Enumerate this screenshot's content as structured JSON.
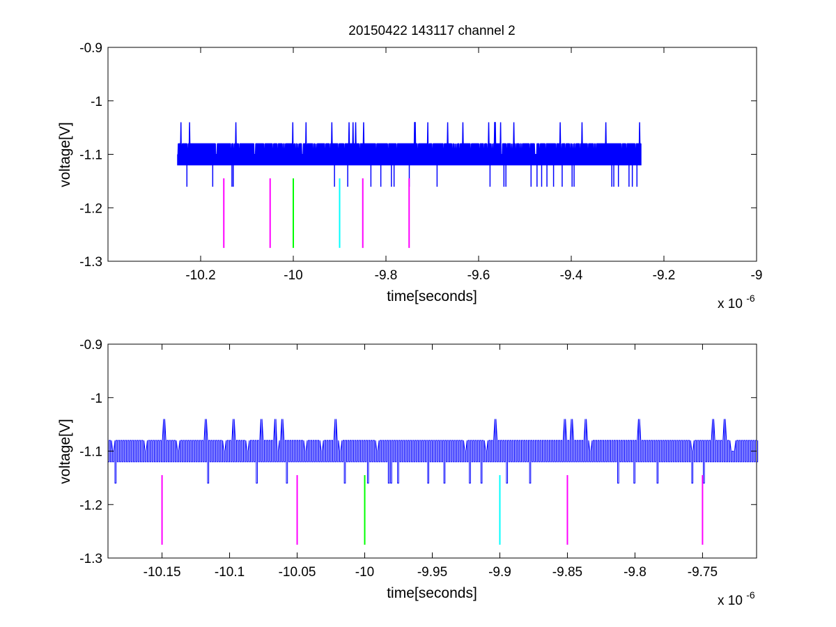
{
  "title": "20150422 143117 channel 2",
  "colors": {
    "signal": "#0000ff",
    "marker_magenta": "#ff00ff",
    "marker_green": "#00ff00",
    "marker_cyan": "#00ffff",
    "axis": "#000000"
  },
  "chart_data": [
    {
      "type": "line",
      "title": "20150422 143117 channel 2",
      "xlabel": "time[seconds]",
      "ylabel": "voltage[V]",
      "x_multiplier_label": "x 10",
      "x_multiplier_exponent": "-6",
      "xlim": [
        -10.4,
        -9.0
      ],
      "ylim": [
        -1.3,
        -0.9
      ],
      "xticks": [
        -10.2,
        -10.0,
        -9.8,
        -9.6,
        -9.4,
        -9.2,
        -9.0
      ],
      "xtick_labels": [
        "-10.2",
        "-10",
        "-9.8",
        "-9.6",
        "-9.4",
        "-9.2",
        "-9"
      ],
      "yticks": [
        -0.9,
        -1.0,
        -1.1,
        -1.2,
        -1.3
      ],
      "ytick_labels": [
        "-0.9",
        "-1",
        "-1.1",
        "-1.2",
        "-1.3"
      ],
      "grid": false,
      "series": [
        {
          "kind": "noise_trace",
          "x_range": [
            -10.25,
            -9.25
          ],
          "baseline_levels": [
            -1.08,
            -1.12
          ],
          "spike_high": -1.04,
          "spike_low": -1.16,
          "color": "#0000ff",
          "segments": 700
        }
      ],
      "markers": [
        {
          "x": -10.15,
          "y_range": [
            -1.145,
            -1.275
          ],
          "color": "#ff00ff"
        },
        {
          "x": -10.05,
          "y_range": [
            -1.145,
            -1.275
          ],
          "color": "#ff00ff"
        },
        {
          "x": -10.0,
          "y_range": [
            -1.145,
            -1.275
          ],
          "color": "#00ff00"
        },
        {
          "x": -9.9,
          "y_range": [
            -1.145,
            -1.275
          ],
          "color": "#00ffff"
        },
        {
          "x": -9.85,
          "y_range": [
            -1.145,
            -1.275
          ],
          "color": "#ff00ff"
        },
        {
          "x": -9.75,
          "y_range": [
            -1.145,
            -1.275
          ],
          "color": "#ff00ff"
        }
      ]
    },
    {
      "type": "line",
      "xlabel": "time[seconds]",
      "ylabel": "voltage[V]",
      "x_multiplier_label": "x 10",
      "x_multiplier_exponent": "-6",
      "xlim": [
        -10.19,
        -9.71
      ],
      "ylim": [
        -1.3,
        -0.9
      ],
      "xticks": [
        -10.15,
        -10.1,
        -10.05,
        -10.0,
        -9.95,
        -9.9,
        -9.85,
        -9.8,
        -9.75
      ],
      "xtick_labels": [
        "-10.15",
        "-10.1",
        "-10.05",
        "-10",
        "-9.95",
        "-9.9",
        "-9.85",
        "-9.8",
        "-9.75"
      ],
      "yticks": [
        -0.9,
        -1.0,
        -1.1,
        -1.2,
        -1.3
      ],
      "ytick_labels": [
        "-0.9",
        "-1",
        "-1.1",
        "-1.2",
        "-1.3"
      ],
      "grid": false,
      "series": [
        {
          "kind": "noise_trace",
          "x_range": [
            -10.19,
            -9.71
          ],
          "baseline_levels": [
            -1.08,
            -1.12
          ],
          "spike_high": -1.04,
          "spike_low": -1.16,
          "color": "#0000ff",
          "segments": 280
        }
      ],
      "markers": [
        {
          "x": -10.15,
          "y_range": [
            -1.145,
            -1.275
          ],
          "color": "#ff00ff"
        },
        {
          "x": -10.05,
          "y_range": [
            -1.145,
            -1.275
          ],
          "color": "#ff00ff"
        },
        {
          "x": -10.0,
          "y_range": [
            -1.145,
            -1.275
          ],
          "color": "#00ff00"
        },
        {
          "x": -9.9,
          "y_range": [
            -1.145,
            -1.275
          ],
          "color": "#00ffff"
        },
        {
          "x": -9.85,
          "y_range": [
            -1.145,
            -1.275
          ],
          "color": "#ff00ff"
        },
        {
          "x": -9.75,
          "y_range": [
            -1.145,
            -1.275
          ],
          "color": "#ff00ff"
        }
      ]
    }
  ]
}
